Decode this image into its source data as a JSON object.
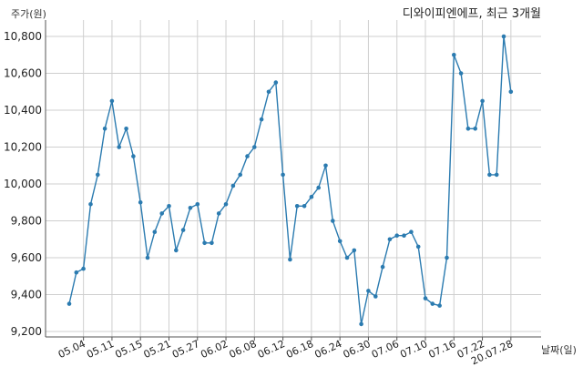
{
  "chart_data": {
    "type": "line",
    "title": "디와이피엔에프, 최근 3개월",
    "ylabel": "주가(원)",
    "xlabel": "날짜(일)",
    "ylim": [
      9200,
      10900
    ],
    "yticks": [
      9200,
      9400,
      9600,
      9800,
      10000,
      10200,
      10400,
      10600,
      10800
    ],
    "ytick_labels": [
      "9,200",
      "9,400",
      "9,600",
      "9,800",
      "10,000",
      "10,200",
      "10,400",
      "10,600",
      "10,800"
    ],
    "xtick_labels": [
      "05.04",
      "05.11",
      "05.15",
      "05.21",
      "05.27",
      "06.02",
      "06.08",
      "06.12",
      "06.18",
      "06.24",
      "06.30",
      "07.06",
      "07.10",
      "07.16",
      "07.22",
      "20.07.28"
    ],
    "xtick_index": [
      2,
      6,
      10,
      14,
      18,
      22,
      26,
      30,
      34,
      38,
      42,
      46,
      50,
      54,
      58,
      62
    ],
    "grid": true,
    "line_color": "#2b7bb0",
    "series": [
      {
        "values": [
          9350,
          9520,
          9540,
          9890,
          10050,
          10300,
          10450,
          10200,
          10300,
          10150,
          9900,
          9600,
          9740,
          9840,
          9880,
          9640,
          9750,
          9870,
          9890,
          9680,
          9680,
          9840,
          9890,
          9990,
          10050,
          10150,
          10200,
          10350,
          10500,
          10550,
          10050,
          9590,
          9880,
          9880,
          9930,
          9980,
          10100,
          9800,
          9690,
          9600,
          9640,
          9240,
          9420,
          9390,
          9550,
          9700,
          9720,
          9720,
          9740,
          9660,
          9380,
          9350,
          9340,
          9600,
          10700,
          10600,
          10300,
          10300,
          10450,
          10050,
          10050,
          10800,
          10500
        ]
      }
    ]
  }
}
